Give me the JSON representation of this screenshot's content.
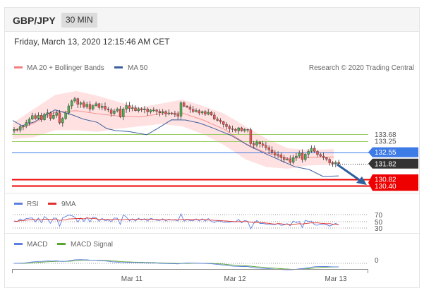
{
  "header": {
    "pair": "GBP/JPY",
    "timeframe": "30 MIN"
  },
  "datetime": "Friday, March 13, 2020 12:15:46 AM CET",
  "colors": {
    "up_candle": "#4caf50",
    "down_candle": "#ef5350",
    "bollinger": "#ffd7d7",
    "ma20": "#f28080",
    "ma50": "#3b5f9e",
    "resistance": "#9ccc65",
    "support": "#ee0000",
    "pivot": "#3d7be6",
    "last_price": "#333333",
    "rsi": "#5c7fe0",
    "rsi_ma": "#e03030",
    "macd": "#5c7fe0",
    "macd_signal": "#5aa532",
    "arrow": "#2f5f9e"
  },
  "chart_data": [
    {
      "type": "candlestick",
      "title": "",
      "legend": [
        {
          "name": "MA 20 + Bollinger Bands",
          "color": "#f28080"
        },
        {
          "name": "MA 50",
          "color": "#3b5f9e"
        }
      ],
      "legend_position": "top-left",
      "credit": "Research © 2020 Trading Central",
      "x_ticks": [
        "Mar 11",
        "Mar 12",
        "Mar 13"
      ],
      "ylim": [
        130.2,
        135.1
      ],
      "price_tags": [
        {
          "label": "133.68",
          "value": 133.68,
          "kind": "resistance"
        },
        {
          "label": "133.25",
          "value": 133.25,
          "kind": "resistance"
        },
        {
          "label": "132.55",
          "value": 132.55,
          "kind": "pivot"
        },
        {
          "label": "131.82",
          "value": 131.82,
          "kind": "last_price"
        },
        {
          "label": "130.82",
          "value": 130.82,
          "kind": "support"
        },
        {
          "label": "130.40",
          "value": 130.4,
          "kind": "support"
        }
      ],
      "close": [
        134.0,
        133.96,
        134.18,
        134.22,
        134.44,
        134.66,
        134.88,
        134.7,
        134.9,
        134.62,
        134.98,
        135.06,
        134.7,
        134.9,
        135.06,
        134.42,
        134.7,
        135.05,
        135.5,
        135.82,
        135.96,
        135.6,
        135.7,
        135.44,
        135.6,
        135.3,
        135.52,
        135.64,
        135.4,
        135.48,
        135.3,
        135.24,
        135.02,
        135.18,
        135.3,
        134.8,
        135.3,
        135.52,
        135.34,
        135.38,
        135.2,
        135.32,
        135.24,
        135.3,
        135.12,
        135.24,
        135.24,
        135.16,
        135.06,
        135.14,
        135.0,
        135.05,
        135.0,
        134.97,
        134.85,
        135.7,
        135.48,
        135.42,
        135.28,
        135.14,
        135.2,
        135.05,
        135.14,
        134.98,
        135.09,
        134.92,
        134.66,
        134.58,
        134.5,
        134.32,
        134.18,
        134.05,
        134.0,
        133.92,
        134.1,
        133.92,
        134.0,
        133.98,
        133.1,
        133.0,
        133.2,
        133.08,
        132.98,
        132.84,
        132.7,
        132.54,
        132.4,
        132.38,
        132.2,
        132.08,
        132.1,
        131.9,
        132.2,
        132.3,
        132.5,
        132.08,
        132.42,
        132.6,
        132.8,
        132.6,
        132.4,
        132.3,
        132.2,
        132.1,
        131.88,
        131.82,
        131.9,
        131.82
      ],
      "ma50_line": [
        [
          0,
          134.57
        ],
        [
          13,
          134.24
        ],
        [
          30,
          134.47
        ],
        [
          60,
          135.25
        ],
        [
          85,
          134.92
        ],
        [
          100,
          134.66
        ],
        [
          120,
          134.45
        ],
        [
          133,
          134.06
        ],
        [
          145,
          133.93
        ],
        [
          165,
          133.86
        ],
        [
          190,
          133.66
        ],
        [
          205,
          134.05
        ],
        [
          225,
          134.61
        ],
        [
          245,
          134.6
        ],
        [
          265,
          134.4
        ],
        [
          285,
          134.07
        ],
        [
          310,
          133.61
        ],
        [
          335,
          132.95
        ],
        [
          360,
          132.42
        ],
        [
          380,
          132.02
        ],
        [
          400,
          131.62
        ],
        [
          420,
          131.45
        ],
        [
          440,
          131.0
        ],
        [
          462,
          131.04
        ]
      ],
      "ma20_line": [
        [
          0,
          133.9
        ],
        [
          30,
          134.4
        ],
        [
          60,
          135.1
        ],
        [
          90,
          135.2
        ],
        [
          120,
          135.0
        ],
        [
          150,
          134.85
        ],
        [
          180,
          134.8
        ],
        [
          210,
          135.0
        ],
        [
          240,
          135.05
        ],
        [
          270,
          134.6
        ],
        [
          300,
          134.0
        ],
        [
          330,
          133.1
        ],
        [
          360,
          132.5
        ],
        [
          390,
          132.15
        ],
        [
          420,
          132.2
        ],
        [
          455,
          132.25
        ]
      ],
      "bb_upper": [
        [
          0,
          134.4
        ],
        [
          30,
          135.3
        ],
        [
          60,
          136.2
        ],
        [
          90,
          136.45
        ],
        [
          120,
          136.15
        ],
        [
          150,
          135.75
        ],
        [
          180,
          135.4
        ],
        [
          210,
          135.65
        ],
        [
          240,
          135.9
        ],
        [
          270,
          135.5
        ],
        [
          300,
          135.0
        ],
        [
          330,
          134.2
        ],
        [
          360,
          133.4
        ],
        [
          390,
          132.8
        ],
        [
          420,
          132.7
        ],
        [
          455,
          132.75
        ]
      ],
      "bb_lower": [
        [
          0,
          133.4
        ],
        [
          30,
          133.5
        ],
        [
          60,
          133.95
        ],
        [
          90,
          133.95
        ],
        [
          120,
          133.85
        ],
        [
          150,
          134.05
        ],
        [
          180,
          134.2
        ],
        [
          210,
          134.35
        ],
        [
          240,
          134.2
        ],
        [
          270,
          133.7
        ],
        [
          300,
          133.0
        ],
        [
          330,
          132.1
        ],
        [
          360,
          131.6
        ],
        [
          390,
          131.5
        ],
        [
          420,
          131.7
        ],
        [
          455,
          131.75
        ]
      ]
    },
    {
      "type": "line",
      "title": "",
      "legend": [
        {
          "name": "RSI",
          "color": "#5c7fe0"
        },
        {
          "name": "9MA",
          "color": "#e03030"
        }
      ],
      "levels": [
        "70",
        "50",
        "30"
      ],
      "ylim": [
        20,
        80
      ]
    },
    {
      "type": "line",
      "title": "",
      "legend": [
        {
          "name": "MACD",
          "color": "#5c7fe0"
        },
        {
          "name": "MACD Signal",
          "color": "#5aa532"
        }
      ],
      "zero_label": "0"
    }
  ]
}
